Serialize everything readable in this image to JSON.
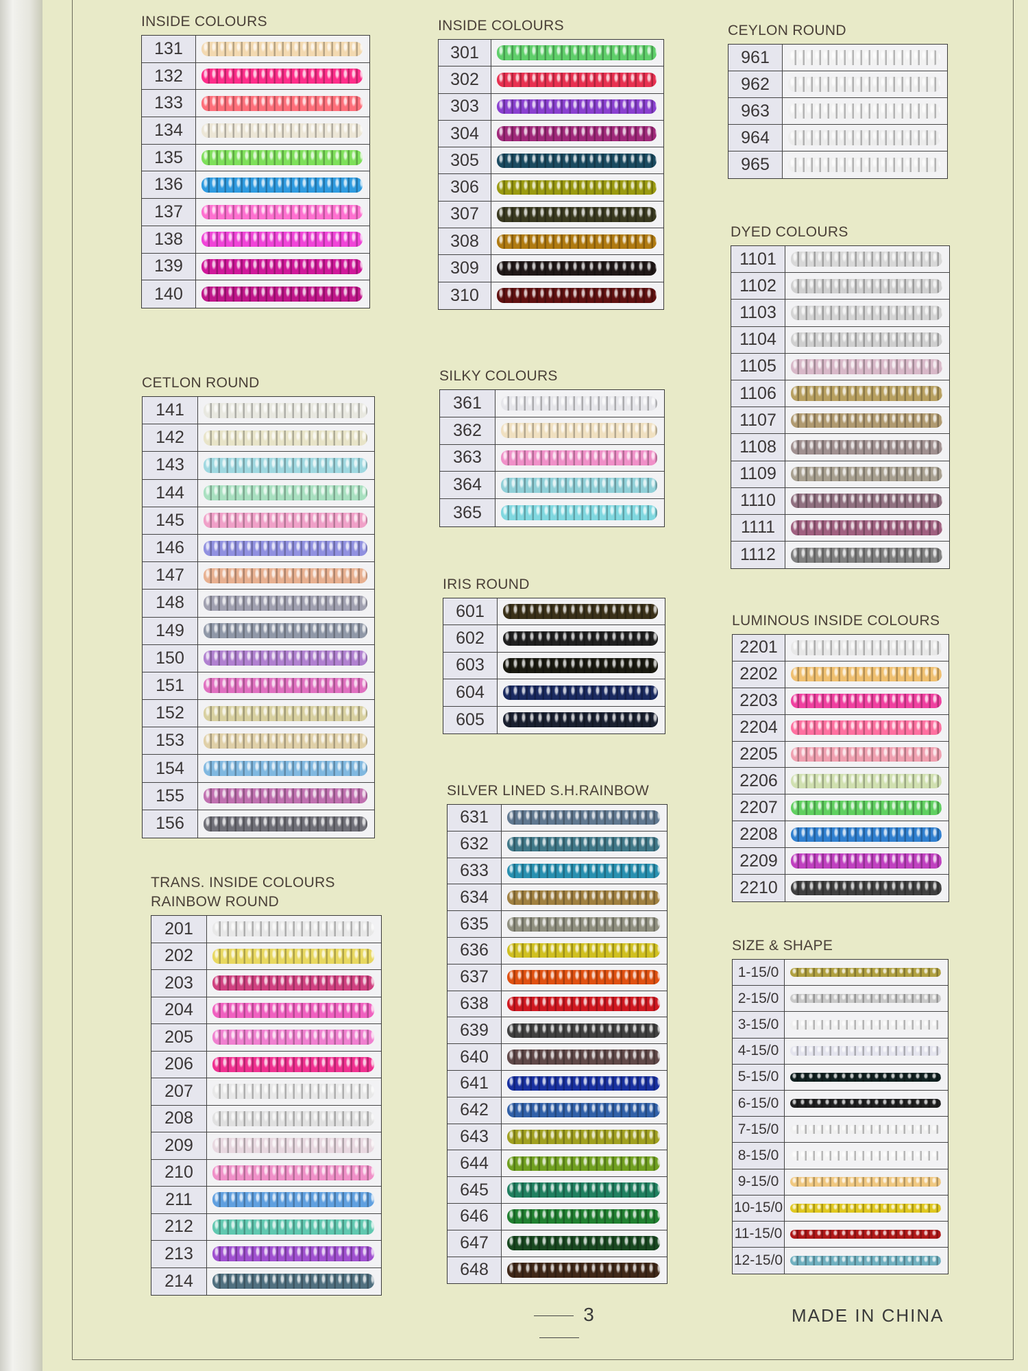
{
  "sections": [
    {
      "id": "s-inside1",
      "title": "INSIDE  COLOURS",
      "rows": [
        [
          "131",
          "#f3d9b0"
        ],
        [
          "132",
          "#ff2d8a"
        ],
        [
          "133",
          "#ff6f7a"
        ],
        [
          "134",
          "#ece6d6"
        ],
        [
          "135",
          "#7ee05a"
        ],
        [
          "136",
          "#2f9be0"
        ],
        [
          "137",
          "#ff70d0"
        ],
        [
          "138",
          "#f044d8"
        ],
        [
          "139",
          "#d0189a"
        ],
        [
          "140",
          "#c0168a"
        ]
      ]
    },
    {
      "id": "s-inside2",
      "title": "INSIDE  COLOURS",
      "rows": [
        [
          "301",
          "#5fcf6a"
        ],
        [
          "302",
          "#e83050"
        ],
        [
          "303",
          "#8a40d0"
        ],
        [
          "304",
          "#a0287a"
        ],
        [
          "305",
          "#1a4a60"
        ],
        [
          "306",
          "#9a9a10"
        ],
        [
          "307",
          "#3a3a20"
        ],
        [
          "308",
          "#b07a10"
        ],
        [
          "309",
          "#201818"
        ],
        [
          "310",
          "#601010"
        ]
      ]
    },
    {
      "id": "s-ceylon",
      "title": "CEYLON ROUND",
      "rows": [
        [
          "961",
          "#f2f2f2"
        ],
        [
          "962",
          "#eeeeee"
        ],
        [
          "963",
          "#f0f0f0"
        ],
        [
          "964",
          "#ececec"
        ],
        [
          "965",
          "#efefef"
        ]
      ]
    },
    {
      "id": "s-cetlon",
      "title": "CETLON ROUND",
      "rows": [
        [
          "141",
          "#e8e8e0"
        ],
        [
          "142",
          "#e8e4c8"
        ],
        [
          "143",
          "#9fd8e0"
        ],
        [
          "144",
          "#a8e0c0"
        ],
        [
          "145",
          "#f0a0c8"
        ],
        [
          "146",
          "#9090e0"
        ],
        [
          "147",
          "#e8b090"
        ],
        [
          "148",
          "#a0a0b0"
        ],
        [
          "149",
          "#9098a8"
        ],
        [
          "150",
          "#b080d0"
        ],
        [
          "151",
          "#e070c0"
        ],
        [
          "152",
          "#d8d0a0"
        ],
        [
          "153",
          "#e0d0a8"
        ],
        [
          "154",
          "#80b8e0"
        ],
        [
          "155",
          "#c070b0"
        ],
        [
          "156",
          "#707078"
        ]
      ]
    },
    {
      "id": "s-silky",
      "title": "SILKY COLOURS",
      "rows": [
        [
          "361",
          "#e6e6ea"
        ],
        [
          "362",
          "#f0e0c0"
        ],
        [
          "363",
          "#f090c8"
        ],
        [
          "364",
          "#90d0d8"
        ],
        [
          "365",
          "#80d8e0"
        ]
      ]
    },
    {
      "id": "s-dyed",
      "title": "DYED COLOURS",
      "rows": [
        [
          "1101",
          "#d8d8d8"
        ],
        [
          "1102",
          "#d0d0d0"
        ],
        [
          "1103",
          "#d4d4d4"
        ],
        [
          "1104",
          "#cfcfcf"
        ],
        [
          "1105",
          "#d8b8c8"
        ],
        [
          "1106",
          "#b8a060"
        ],
        [
          "1107",
          "#b09a70"
        ],
        [
          "1108",
          "#a09090"
        ],
        [
          "1109",
          "#a8a090"
        ],
        [
          "1110",
          "#907080"
        ],
        [
          "1111",
          "#a06080"
        ],
        [
          "1112",
          "#808080"
        ]
      ]
    },
    {
      "id": "s-iris",
      "title": "IRIS ROUND",
      "rows": [
        [
          "601",
          "#3a3018"
        ],
        [
          "602",
          "#202020"
        ],
        [
          "603",
          "#1a1a10"
        ],
        [
          "604",
          "#1a2a60"
        ],
        [
          "605",
          "#1a2030"
        ]
      ]
    },
    {
      "id": "s-lumin",
      "title": "LUMINOUS INSIDE COLOURS",
      "rows": [
        [
          "2201",
          "#e8e8e8"
        ],
        [
          "2202",
          "#f0c070"
        ],
        [
          "2203",
          "#f040a0"
        ],
        [
          "2204",
          "#ff70a0"
        ],
        [
          "2205",
          "#f0a0b0"
        ],
        [
          "2206",
          "#d0e0b0"
        ],
        [
          "2207",
          "#60d060"
        ],
        [
          "2208",
          "#3080d0"
        ],
        [
          "2209",
          "#c040c0"
        ],
        [
          "2210",
          "#404040"
        ]
      ]
    },
    {
      "id": "s-trans",
      "title": "TRANS. INSIDE  COLOURS\nRAINBOW ROUND",
      "rows": [
        [
          "201",
          "#e8e8e8"
        ],
        [
          "202",
          "#e8d860"
        ],
        [
          "203",
          "#d04080"
        ],
        [
          "204",
          "#f060c0"
        ],
        [
          "205",
          "#f080d0"
        ],
        [
          "206",
          "#f03090"
        ],
        [
          "207",
          "#e8e8e8"
        ],
        [
          "208",
          "#e0e0e0"
        ],
        [
          "209",
          "#e8d8e0"
        ],
        [
          "210",
          "#f090c8"
        ],
        [
          "211",
          "#60a0e0"
        ],
        [
          "212",
          "#60c8b0"
        ],
        [
          "213",
          "#a050d0"
        ],
        [
          "214",
          "#507080"
        ]
      ]
    },
    {
      "id": "s-silver",
      "title": "SILVER LINED S.H.RAINBOW",
      "rows": [
        [
          "631",
          "#607890"
        ],
        [
          "632",
          "#407888"
        ],
        [
          "633",
          "#2890b0"
        ],
        [
          "634",
          "#a08040"
        ],
        [
          "635",
          "#909080"
        ],
        [
          "636",
          "#d0c020"
        ],
        [
          "637",
          "#e05010"
        ],
        [
          "638",
          "#d01820"
        ],
        [
          "639",
          "#404040"
        ],
        [
          "640",
          "#604848"
        ],
        [
          "641",
          "#1830a0"
        ],
        [
          "642",
          "#3060a8"
        ],
        [
          "643",
          "#a0a020"
        ],
        [
          "644",
          "#70a020"
        ],
        [
          "645",
          "#208060"
        ],
        [
          "646",
          "#208030"
        ],
        [
          "647",
          "#184820"
        ],
        [
          "648",
          "#402818"
        ]
      ]
    },
    {
      "id": "s-size",
      "title": "SIZE & SHAPE",
      "thin": true,
      "rows": [
        [
          "1-15/0",
          "#b0a040"
        ],
        [
          "2-15/0",
          "#c8c8c8"
        ],
        [
          "3-15/0",
          "#f0f0f0"
        ],
        [
          "4-15/0",
          "#e4e4ee"
        ],
        [
          "5-15/0",
          "#102020"
        ],
        [
          "6-15/0",
          "#202020"
        ],
        [
          "7-15/0",
          "#f0f0f0"
        ],
        [
          "8-15/0",
          "#f4f4f4"
        ],
        [
          "9-15/0",
          "#f0c880"
        ],
        [
          "10-15/0",
          "#e0c820"
        ],
        [
          "11-15/0",
          "#b01818"
        ],
        [
          "12-15/0",
          "#70b0c0"
        ]
      ]
    }
  ],
  "footer": {
    "page_number": "3",
    "made_in": "MADE IN CHINA"
  }
}
